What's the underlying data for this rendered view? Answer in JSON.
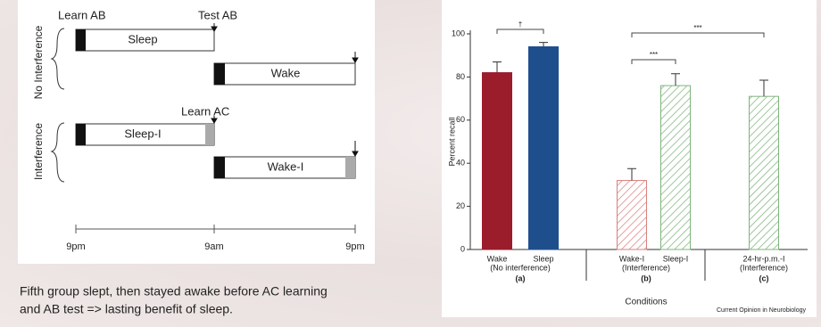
{
  "diagram": {
    "top_labels": [
      "Learn AB",
      "Test AB"
    ],
    "mid_label": "Learn AC",
    "groups": [
      "No Interference",
      "Interference"
    ],
    "bars": [
      "Sleep",
      "Wake",
      "Sleep-I",
      "Wake-I"
    ],
    "timeline": [
      "9pm",
      "9am",
      "9pm"
    ]
  },
  "caption": [
    "Fifth group slept, then stayed awake before AC learning",
    "and AB test => lasting benefit of sleep."
  ],
  "chart_data": {
    "type": "bar",
    "categories": [
      "Wake",
      "Sleep",
      "Wake-I",
      "Sleep-I",
      "24-hr-p.m.-I"
    ],
    "values": [
      82,
      94,
      32,
      76,
      71
    ],
    "errors": [
      5,
      2,
      5.5,
      5.5,
      7.5
    ],
    "colors": [
      "#9b1c2a",
      "#1f4e8c",
      "#d9807e",
      "#7fb47c",
      "#7fb47c"
    ],
    "hatched": [
      false,
      false,
      true,
      true,
      true
    ],
    "groups": [
      {
        "label": "(No interference)",
        "id": "(a)"
      },
      {
        "label": "(Interference)",
        "id": "(b)"
      },
      {
        "label": "(Interference)",
        "id": "(c)"
      }
    ],
    "annotations": [
      "†",
      "***",
      "***"
    ],
    "y_label": "Percent recall",
    "x_label": "Conditions",
    "source": "Current Opinion in Neurobiology",
    "ylim": [
      0,
      100
    ],
    "yticks": [
      0,
      20,
      40,
      60,
      80,
      100
    ]
  }
}
